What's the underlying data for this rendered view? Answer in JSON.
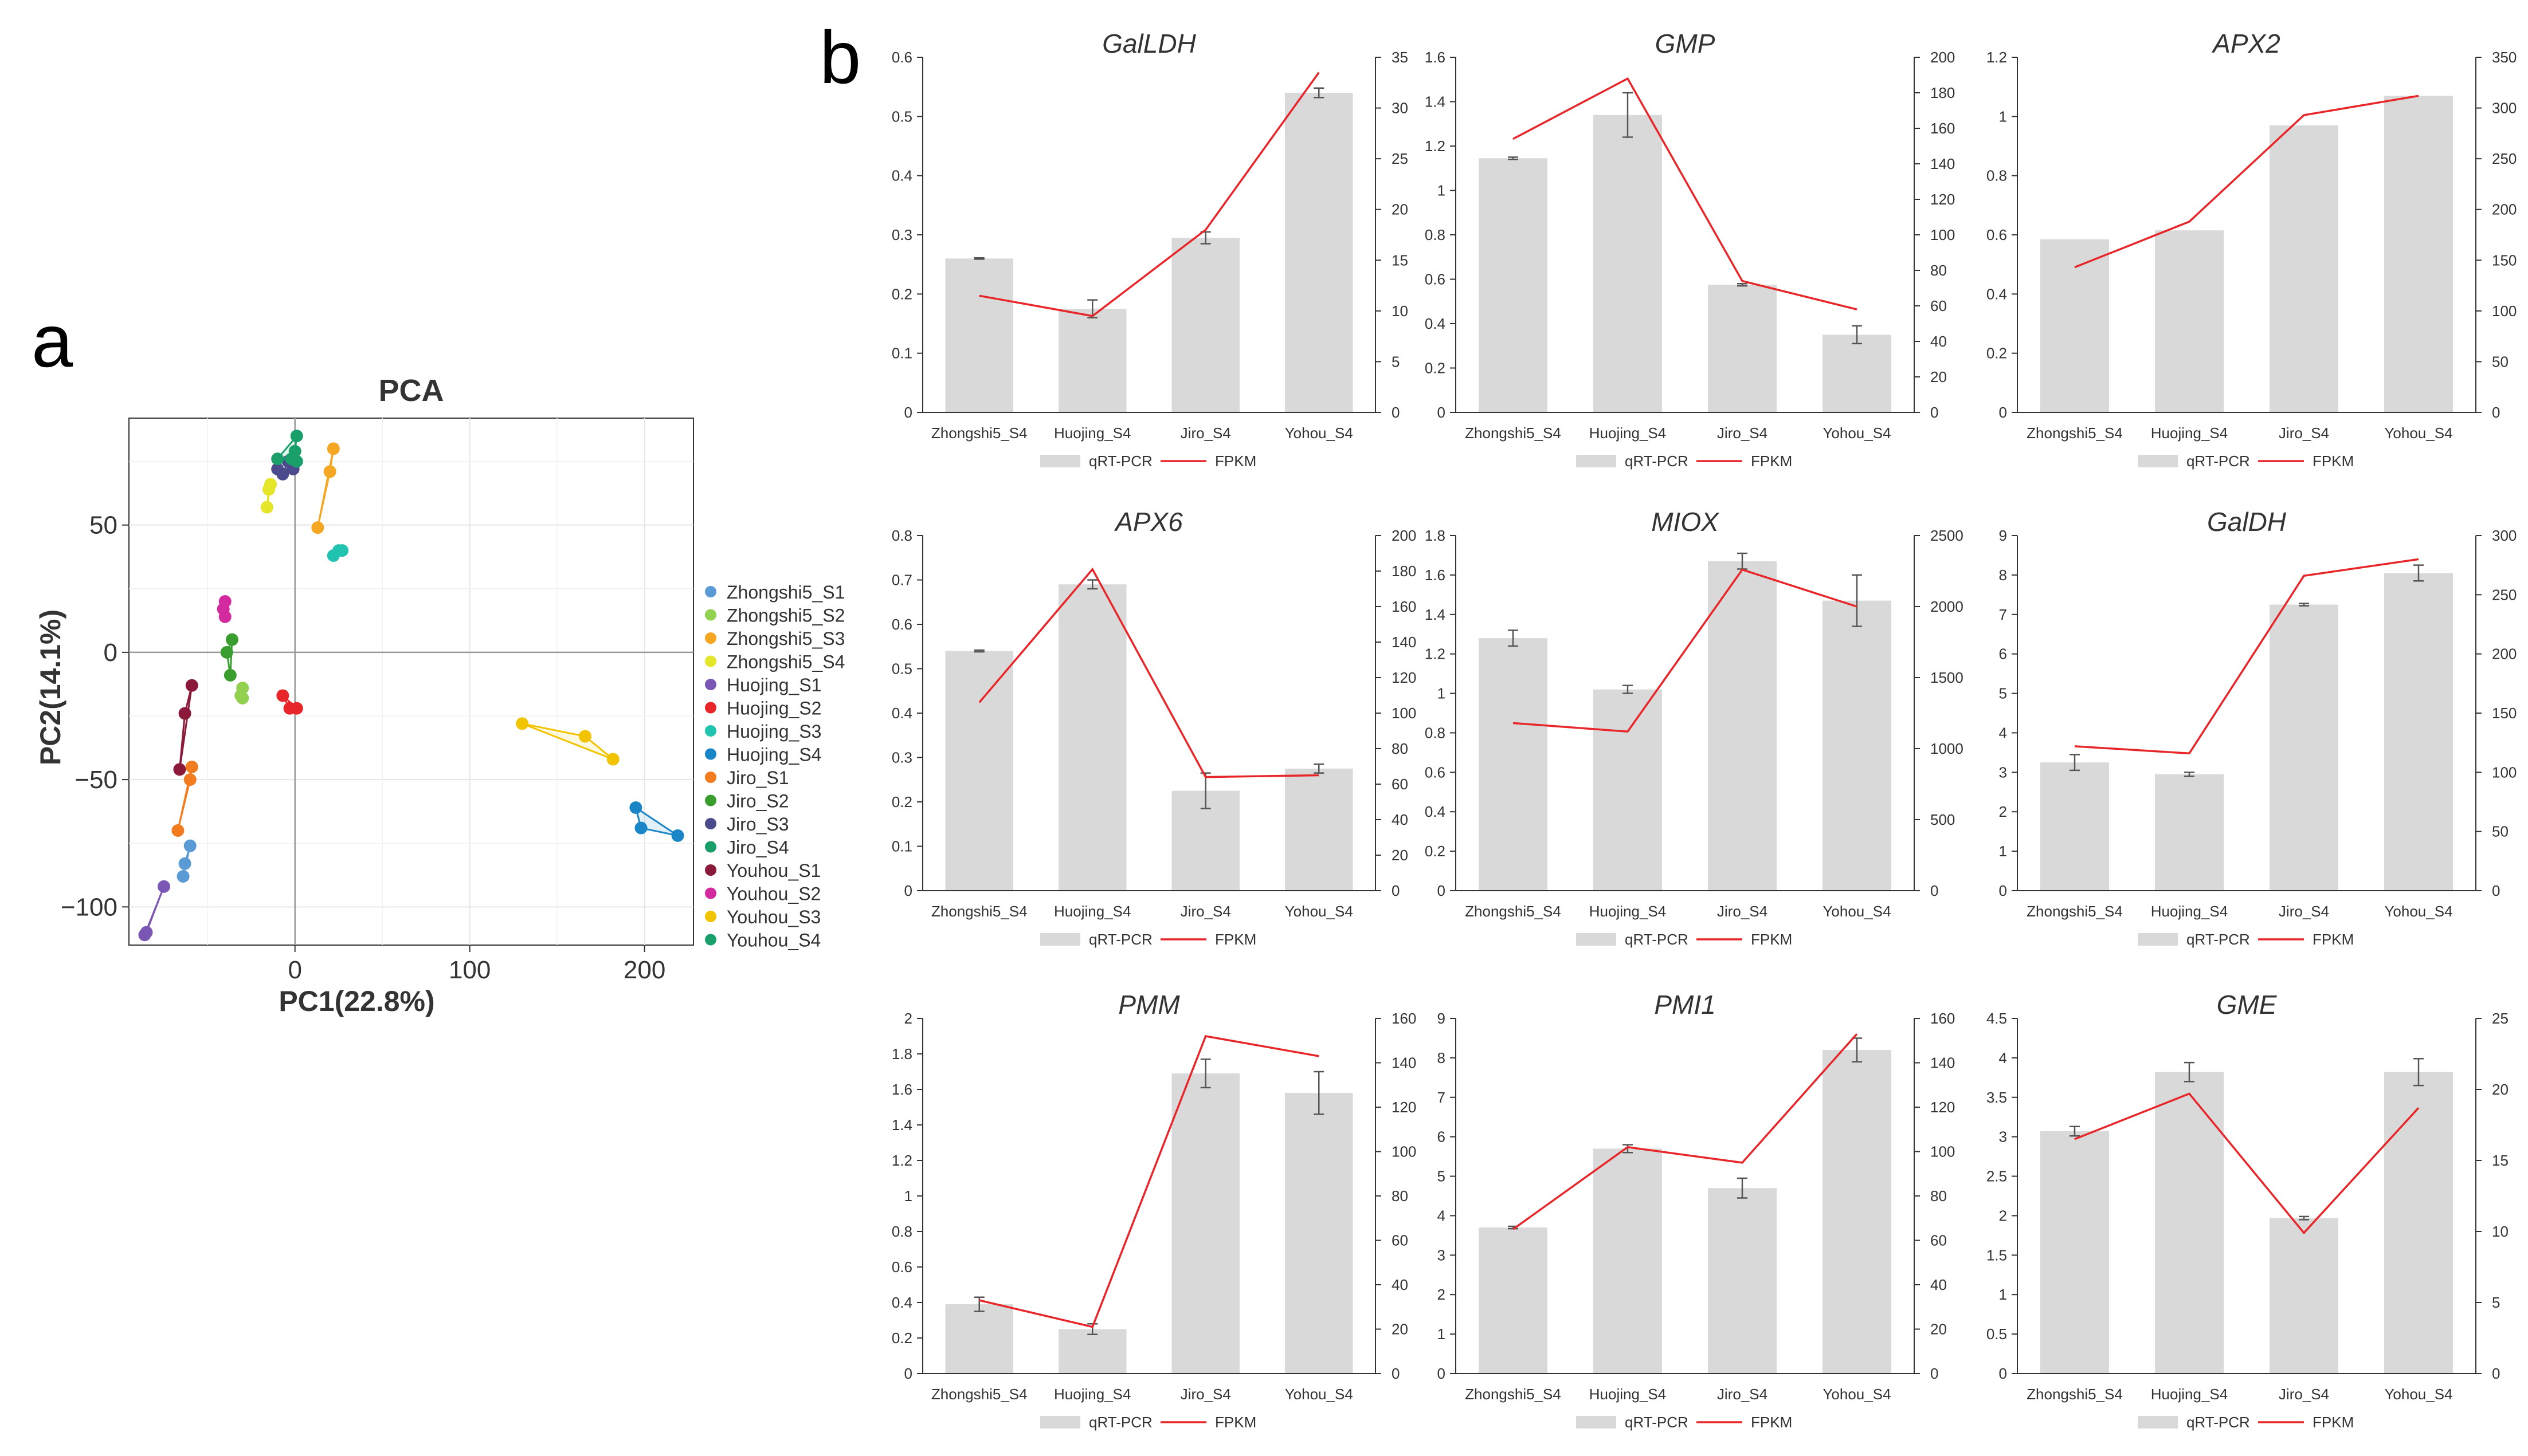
{
  "panel_a_letter": "a",
  "panel_b_letter": "b",
  "colors": {
    "bar": "#d9d9d9",
    "fpkm_line": "#e8262a",
    "axis": "#333333",
    "grid": "#e6e6e6",
    "text": "#333333"
  },
  "chart_data": [
    {
      "id": "pca",
      "type": "scatter",
      "title": "PCA",
      "xlabel": "PC1(22.8%)",
      "ylabel": "PC2(14.1%)",
      "xlim": [
        -95,
        228
      ],
      "ylim": [
        -115,
        92
      ],
      "xticks": [
        0,
        100,
        200
      ],
      "yticks": [
        -100,
        -50,
        0,
        50
      ],
      "legend_position": "right",
      "series": [
        {
          "name": "Zhongshi5_S1",
          "color": "#5b9bd5",
          "points": [
            [
              -60,
              -76
            ],
            [
              -63,
              -83
            ],
            [
              -64,
              -88
            ]
          ]
        },
        {
          "name": "Zhongshi5_S2",
          "color": "#92d050",
          "points": [
            [
              -30,
              -14
            ],
            [
              -31,
              -17
            ],
            [
              -30,
              -18
            ]
          ]
        },
        {
          "name": "Zhongshi5_S3",
          "color": "#f5a623",
          "points": [
            [
              22,
              80
            ],
            [
              20,
              71
            ],
            [
              13,
              49
            ]
          ]
        },
        {
          "name": "Zhongshi5_S4",
          "color": "#e5e52a",
          "points": [
            [
              -14,
              66
            ],
            [
              -15,
              64
            ],
            [
              -16,
              57
            ]
          ]
        },
        {
          "name": "Huojing_S1",
          "color": "#7b57b5",
          "points": [
            [
              -85,
              -110
            ],
            [
              -75,
              -92
            ],
            [
              -86,
              -111
            ]
          ]
        },
        {
          "name": "Huojing_S2",
          "color": "#e8262a",
          "points": [
            [
              -7,
              -17
            ],
            [
              -3,
              -22
            ],
            [
              1,
              -22
            ]
          ]
        },
        {
          "name": "Huojing_S3",
          "color": "#1fc3b0",
          "points": [
            [
              22,
              38
            ],
            [
              25,
              40
            ],
            [
              27,
              40
            ]
          ]
        },
        {
          "name": "Huojing_S4",
          "color": "#1a86c8",
          "points": [
            [
              195,
              -61
            ],
            [
              198,
              -69
            ],
            [
              219,
              -72
            ]
          ]
        },
        {
          "name": "Jiro_S1",
          "color": "#f47c20",
          "points": [
            [
              -59,
              -45
            ],
            [
              -60,
              -50
            ],
            [
              -67,
              -70
            ]
          ]
        },
        {
          "name": "Jiro_S2",
          "color": "#3a9e2f",
          "points": [
            [
              -36,
              5
            ],
            [
              -39,
              0
            ],
            [
              -37,
              -9
            ]
          ]
        },
        {
          "name": "Jiro_S3",
          "color": "#4a4a8c",
          "points": [
            [
              -4,
              75
            ],
            [
              -7,
              70
            ],
            [
              -10,
              72
            ],
            [
              -1,
              72
            ]
          ]
        },
        {
          "name": "Jiro_S4",
          "color": "#1a9e6a",
          "points": [
            [
              1,
              85
            ],
            [
              0,
              79
            ],
            [
              1,
              75
            ],
            [
              -2,
              76
            ],
            [
              -10,
              76
            ]
          ]
        },
        {
          "name": "Youhou_S1",
          "color": "#8b1a3a",
          "points": [
            [
              -59,
              -13
            ],
            [
              -63,
              -24
            ],
            [
              -66,
              -46
            ]
          ]
        },
        {
          "name": "Youhou_S2",
          "color": "#d42aa0",
          "points": [
            [
              -40,
              20
            ],
            [
              -41,
              17
            ],
            [
              -40,
              14
            ]
          ]
        },
        {
          "name": "Youhou_S3",
          "color": "#f2c400",
          "points": [
            [
              130,
              -28
            ],
            [
              166,
              -33
            ],
            [
              182,
              -42
            ]
          ]
        },
        {
          "name": "Youhou_S4",
          "color": "#1a9e6a",
          "points": []
        }
      ]
    },
    {
      "id": "GalLDH",
      "type": "bar",
      "title": "GalLDH",
      "categories": [
        "Zhongshi5_S4",
        "Huojing_S4",
        "Jiro_S4",
        "Yohou_S4"
      ],
      "series": [
        {
          "name": "qRT-PCR",
          "axis": "left",
          "values": [
            0.26,
            0.175,
            0.295,
            0.54
          ],
          "errors": [
            0.001,
            0.015,
            0.01,
            0.008
          ]
        },
        {
          "name": "FPKM",
          "axis": "right",
          "values": [
            11.5,
            9.5,
            18,
            33.5
          ]
        }
      ],
      "ylim_left": [
        0,
        0.6
      ],
      "yticks_left": [
        "0",
        "0.1",
        "0.2",
        "0.3",
        "0.4",
        "0.5",
        "0.6"
      ],
      "ylim_right": [
        0,
        35
      ],
      "yticks_right": [
        "0",
        "5",
        "10",
        "15",
        "20",
        "25",
        "30",
        "35"
      ]
    },
    {
      "id": "GMP",
      "type": "bar",
      "title": "GMP",
      "categories": [
        "Zhongshi5_S4",
        "Huojing_S4",
        "Jiro_S4",
        "Yohou_S4"
      ],
      "series": [
        {
          "name": "qRT-PCR",
          "axis": "left",
          "values": [
            1.145,
            1.34,
            0.575,
            0.35
          ],
          "errors": [
            0.005,
            0.1,
            0.005,
            0.04
          ]
        },
        {
          "name": "FPKM",
          "axis": "right",
          "values": [
            154,
            188,
            74,
            58
          ]
        }
      ],
      "ylim_left": [
        0,
        1.6
      ],
      "yticks_left": [
        "0",
        "0.2",
        "0.4",
        "0.6",
        "0.8",
        "1",
        "1.2",
        "1.4",
        "1.6"
      ],
      "ylim_right": [
        0,
        200
      ],
      "yticks_right": [
        "0",
        "20",
        "40",
        "60",
        "80",
        "100",
        "120",
        "140",
        "160",
        "180",
        "200"
      ]
    },
    {
      "id": "APX2",
      "type": "bar",
      "title": "APX2",
      "categories": [
        "Zhongshi5_S4",
        "Huojing_S4",
        "Jiro_S4",
        "Yohou_S4"
      ],
      "series": [
        {
          "name": "qRT-PCR",
          "axis": "left",
          "values": [
            0.585,
            0.615,
            0.97,
            1.07
          ],
          "errors": [
            0,
            0,
            0,
            0
          ]
        },
        {
          "name": "FPKM",
          "axis": "right",
          "values": [
            143,
            188,
            293,
            312
          ]
        }
      ],
      "ylim_left": [
        0,
        1.2
      ],
      "yticks_left": [
        "0",
        "0.2",
        "0.4",
        "0.6",
        "0.8",
        "1",
        "1.2"
      ],
      "ylim_right": [
        0,
        350
      ],
      "yticks_right": [
        "0",
        "50",
        "100",
        "150",
        "200",
        "250",
        "300",
        "350"
      ]
    },
    {
      "id": "APX6",
      "type": "bar",
      "title": "APX6",
      "categories": [
        "Zhongshi5_S4",
        "Huojing_S4",
        "Jiro_S4",
        "Yohou_S4"
      ],
      "series": [
        {
          "name": "qRT-PCR",
          "axis": "left",
          "values": [
            0.54,
            0.69,
            0.225,
            0.275
          ],
          "errors": [
            0.002,
            0.01,
            0.04,
            0.01
          ]
        },
        {
          "name": "FPKM",
          "axis": "right",
          "values": [
            106,
            181,
            64,
            65
          ]
        }
      ],
      "ylim_left": [
        0,
        0.8
      ],
      "yticks_left": [
        "0",
        "0.1",
        "0.2",
        "0.3",
        "0.4",
        "0.5",
        "0.6",
        "0.7",
        "0.8"
      ],
      "ylim_right": [
        0,
        200
      ],
      "yticks_right": [
        "0",
        "20",
        "40",
        "60",
        "80",
        "100",
        "120",
        "140",
        "160",
        "180",
        "200"
      ]
    },
    {
      "id": "MIOX",
      "type": "bar",
      "title": "MIOX",
      "categories": [
        "Zhongshi5_S4",
        "Huojing_S4",
        "Jiro_S4",
        "Yohou_S4"
      ],
      "series": [
        {
          "name": "qRT-PCR",
          "axis": "left",
          "values": [
            1.28,
            1.02,
            1.67,
            1.47
          ],
          "errors": [
            0.04,
            0.02,
            0.04,
            0.13
          ]
        },
        {
          "name": "FPKM",
          "axis": "right",
          "values": [
            1180,
            1120,
            2260,
            2000
          ]
        }
      ],
      "ylim_left": [
        0,
        1.8
      ],
      "yticks_left": [
        "0",
        "0.2",
        "0.4",
        "0.6",
        "0.8",
        "1",
        "1.2",
        "1.4",
        "1.6",
        "1.8"
      ],
      "ylim_right": [
        0,
        2500
      ],
      "yticks_right": [
        "0",
        "500",
        "1000",
        "1500",
        "2000",
        "2500"
      ]
    },
    {
      "id": "GalDH",
      "type": "bar",
      "title": "GalDH",
      "categories": [
        "Zhongshi5_S4",
        "Huojing_S4",
        "Jiro_S4",
        "Yohou_S4"
      ],
      "series": [
        {
          "name": "qRT-PCR",
          "axis": "left",
          "values": [
            3.25,
            2.95,
            7.25,
            8.05
          ],
          "errors": [
            0.2,
            0.05,
            0.03,
            0.2
          ]
        },
        {
          "name": "FPKM",
          "axis": "right",
          "values": [
            122,
            116,
            266,
            280
          ]
        }
      ],
      "ylim_left": [
        0,
        9
      ],
      "yticks_left": [
        "0",
        "1",
        "2",
        "3",
        "4",
        "5",
        "6",
        "7",
        "8",
        "9"
      ],
      "ylim_right": [
        0,
        300
      ],
      "yticks_right": [
        "0",
        "50",
        "100",
        "150",
        "200",
        "250",
        "300"
      ]
    },
    {
      "id": "PMM",
      "type": "bar",
      "title": "PMM",
      "categories": [
        "Zhongshi5_S4",
        "Huojing_S4",
        "Jiro_S4",
        "Yohou_S4"
      ],
      "series": [
        {
          "name": "qRT-PCR",
          "axis": "left",
          "values": [
            0.39,
            0.25,
            1.69,
            1.58
          ],
          "errors": [
            0.04,
            0.03,
            0.08,
            0.12
          ]
        },
        {
          "name": "FPKM",
          "axis": "right",
          "values": [
            33,
            21,
            152,
            143
          ]
        }
      ],
      "ylim_left": [
        0,
        2
      ],
      "yticks_left": [
        "0",
        "0.2",
        "0.4",
        "0.6",
        "0.8",
        "1",
        "1.2",
        "1.4",
        "1.6",
        "1.8",
        "2"
      ],
      "ylim_right": [
        0,
        160
      ],
      "yticks_right": [
        "0",
        "20",
        "40",
        "60",
        "80",
        "100",
        "120",
        "140",
        "160"
      ]
    },
    {
      "id": "PMI1",
      "type": "bar",
      "title": "PMI1",
      "categories": [
        "Zhongshi5_S4",
        "Huojing_S4",
        "Jiro_S4",
        "Yohou_S4"
      ],
      "series": [
        {
          "name": "qRT-PCR",
          "axis": "left",
          "values": [
            3.7,
            5.7,
            4.7,
            8.2
          ],
          "errors": [
            0.03,
            0.1,
            0.25,
            0.3
          ]
        },
        {
          "name": "FPKM",
          "axis": "right",
          "values": [
            65,
            102,
            95,
            153
          ]
        }
      ],
      "ylim_left": [
        0,
        9
      ],
      "yticks_left": [
        "0",
        "1",
        "2",
        "3",
        "4",
        "5",
        "6",
        "7",
        "8",
        "9"
      ],
      "ylim_right": [
        0,
        160
      ],
      "yticks_right": [
        "0",
        "20",
        "40",
        "60",
        "80",
        "100",
        "120",
        "140",
        "160"
      ]
    },
    {
      "id": "GME",
      "type": "bar",
      "title": "GME",
      "categories": [
        "Zhongshi5_S4",
        "Huojing_S4",
        "Jiro_S4",
        "Yohou_S4"
      ],
      "series": [
        {
          "name": "qRT-PCR",
          "axis": "left",
          "values": [
            3.07,
            3.82,
            1.97,
            3.82
          ],
          "errors": [
            0.06,
            0.12,
            0.02,
            0.17
          ]
        },
        {
          "name": "FPKM",
          "axis": "right",
          "values": [
            16.5,
            19.7,
            9.9,
            18.7
          ]
        }
      ],
      "ylim_left": [
        0,
        4.5
      ],
      "yticks_left": [
        "0",
        "0.5",
        "1",
        "1.5",
        "2",
        "2.5",
        "3",
        "3.5",
        "4",
        "4.5"
      ],
      "ylim_right": [
        0,
        25
      ],
      "yticks_right": [
        "0",
        "5",
        "10",
        "15",
        "20",
        "25"
      ]
    }
  ]
}
